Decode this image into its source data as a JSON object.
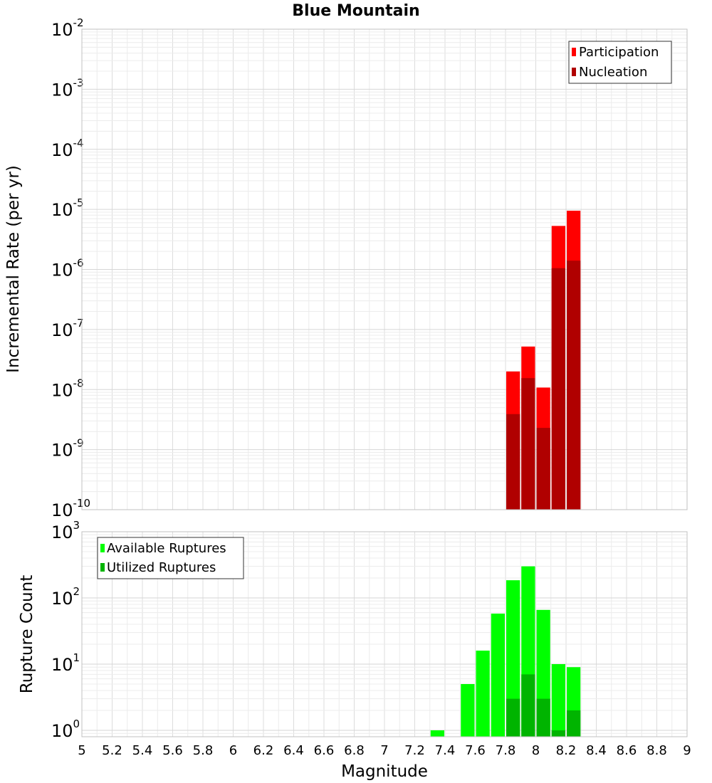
{
  "chart_data": [
    {
      "type": "bar",
      "panel": "top",
      "title": "Blue Mountain",
      "xlabel": "",
      "ylabel": "Incremental Rate (per yr)",
      "yscale": "log",
      "ylim": [
        1e-10,
        0.01
      ],
      "xlim": [
        5,
        9
      ],
      "y_ticks": [
        {
          "base": "10",
          "exp": "-10",
          "value": 1e-10
        },
        {
          "base": "10",
          "exp": "-9",
          "value": 1e-09
        },
        {
          "base": "10",
          "exp": "-8",
          "value": 1e-08
        },
        {
          "base": "10",
          "exp": "-7",
          "value": 1e-07
        },
        {
          "base": "10",
          "exp": "-6",
          "value": 1e-06
        },
        {
          "base": "10",
          "exp": "-5",
          "value": 1e-05
        },
        {
          "base": "10",
          "exp": "-4",
          "value": 0.0001
        },
        {
          "base": "10",
          "exp": "-3",
          "value": 0.001
        },
        {
          "base": "10",
          "exp": "-2",
          "value": 0.01
        }
      ],
      "bin_width": 0.1,
      "legend": [
        {
          "label": "Participation",
          "color": "#ff0000"
        },
        {
          "label": "Nucleation",
          "color": "#b00000"
        }
      ],
      "legend_position": "top-right",
      "series": [
        {
          "name": "Participation",
          "color": "#ff0000",
          "x": [
            7.85,
            7.95,
            8.05,
            8.15,
            8.25
          ],
          "values": [
            2e-08,
            5.2e-08,
            1.08e-08,
            5.3e-06,
            9.5e-06
          ]
        },
        {
          "name": "Nucleation",
          "color": "#b00000",
          "x": [
            7.85,
            7.95,
            8.05,
            8.15,
            8.25
          ],
          "values": [
            3.9e-09,
            1.55e-08,
            2.3e-09,
            1.05e-06,
            1.4e-06
          ]
        }
      ]
    },
    {
      "type": "bar",
      "panel": "bottom",
      "xlabel": "Magnitude",
      "ylabel": "Rupture Count",
      "yscale": "log",
      "ylim": [
        0.8,
        1000
      ],
      "xlim": [
        5,
        9
      ],
      "x_ticks": [
        "5",
        "5.2",
        "5.4",
        "5.6",
        "5.8",
        "6",
        "6.2",
        "6.4",
        "6.6",
        "6.8",
        "7",
        "7.2",
        "7.4",
        "7.6",
        "7.8",
        "8",
        "8.2",
        "8.4",
        "8.6",
        "8.8",
        "9"
      ],
      "y_ticks": [
        {
          "base": "10",
          "exp": "0",
          "value": 1
        },
        {
          "base": "10",
          "exp": "1",
          "value": 10
        },
        {
          "base": "10",
          "exp": "2",
          "value": 100
        },
        {
          "base": "10",
          "exp": "3",
          "value": 1000
        }
      ],
      "bin_width": 0.1,
      "legend": [
        {
          "label": "Available Ruptures",
          "color": "#00ff00"
        },
        {
          "label": "Utilized Ruptures",
          "color": "#00b400"
        }
      ],
      "legend_position": "top-left",
      "series": [
        {
          "name": "Available Ruptures",
          "color": "#00ff00",
          "x": [
            7.35,
            7.55,
            7.65,
            7.75,
            7.85,
            7.95,
            8.05,
            8.15,
            8.25
          ],
          "values": [
            1,
            5,
            16,
            58,
            185,
            300,
            66,
            10,
            9
          ]
        },
        {
          "name": "Utilized Ruptures",
          "color": "#00b400",
          "x": [
            7.85,
            7.95,
            8.05,
            8.15,
            8.25
          ],
          "values": [
            3,
            7,
            3,
            1,
            2
          ]
        }
      ]
    }
  ]
}
